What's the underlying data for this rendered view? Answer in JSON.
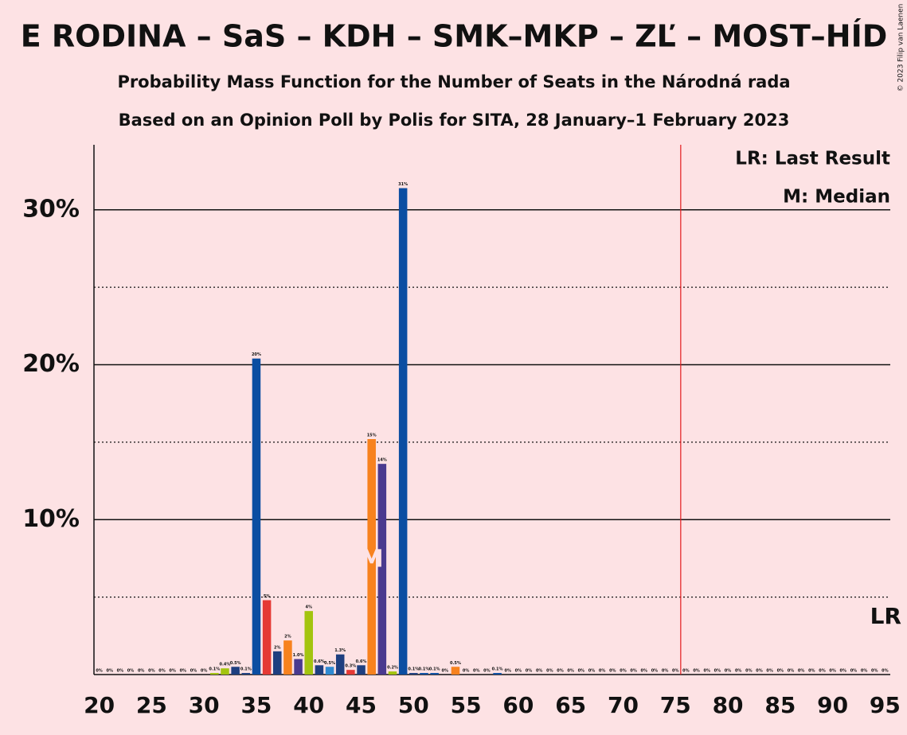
{
  "chart_data": {
    "type": "bar",
    "title": "E RODINA – SaS – KDH – SMK–MKP – ZĽ – MOST–HÍD",
    "subtitle": "Probability Mass Function for the Number of Seats in the Národná rada",
    "subtitle2": "Based on an Opinion Poll by Polis for SITA, 28 January–1 February 2023",
    "copyright": "© 2023 Filip van Laenen",
    "legend": [
      "LR: Last Result",
      "M: Median"
    ],
    "last_result_label": "LR",
    "median_label": "M",
    "median": 46,
    "last_result_line": 75.5,
    "x": [
      20,
      21,
      22,
      23,
      24,
      25,
      26,
      27,
      28,
      29,
      30,
      31,
      32,
      33,
      34,
      35,
      36,
      37,
      38,
      39,
      40,
      41,
      42,
      43,
      44,
      45,
      46,
      47,
      48,
      49,
      50,
      51,
      52,
      53,
      54,
      55,
      56,
      57,
      58,
      59,
      60,
      61,
      62,
      63,
      64,
      65,
      66,
      67,
      68,
      69,
      70,
      71,
      72,
      73,
      74,
      75,
      76,
      77,
      78,
      79,
      80,
      81,
      82,
      83,
      84,
      85,
      86,
      87,
      88,
      89,
      90,
      91,
      92,
      93,
      94,
      95
    ],
    "values": [
      0,
      0,
      0,
      0,
      0,
      0,
      0,
      0,
      0,
      0,
      0,
      0.1,
      0.4,
      0.5,
      0.1,
      20.4,
      4.8,
      1.5,
      2.2,
      1.0,
      4.1,
      0.6,
      0.5,
      1.3,
      0.3,
      0.6,
      15.2,
      13.6,
      0.2,
      31.4,
      0.1,
      0.1,
      0.1,
      0,
      0.5,
      0,
      0,
      0,
      0.1,
      0,
      0,
      0,
      0,
      0,
      0,
      0,
      0,
      0,
      0,
      0,
      0,
      0,
      0,
      0,
      0,
      0,
      0,
      0,
      0,
      0,
      0,
      0,
      0,
      0,
      0,
      0,
      0,
      0,
      0,
      0,
      0,
      0,
      0,
      0,
      0,
      0
    ],
    "value_labels": [
      "0%",
      "0%",
      "0%",
      "0%",
      "0%",
      "0%",
      "0%",
      "0%",
      "0%",
      "0%",
      "0%",
      "0.1%",
      "0.4%",
      "0.5%",
      "0.1%",
      "20%",
      "5%",
      "2%",
      "2%",
      "1.0%",
      "4%",
      "0.6%",
      "0.5%",
      "1.3%",
      "0.3%",
      "0.6%",
      "15%",
      "14%",
      "0.2%",
      "31%",
      "0.1%",
      "0.1%",
      "0.1%",
      "0%",
      "0.5%",
      "0%",
      "0%",
      "0%",
      "0.1%",
      "0%",
      "0%",
      "0%",
      "0%",
      "0%",
      "0%",
      "0%",
      "0%",
      "0%",
      "0%",
      "0%",
      "0%",
      "0%",
      "0%",
      "0%",
      "0%",
      "0%",
      "0%",
      "0%",
      "0%",
      "0%",
      "0%",
      "0%",
      "0%",
      "0%",
      "0%",
      "0%",
      "0%",
      "0%",
      "0%",
      "0%",
      "0%",
      "0%",
      "0%",
      "0%",
      "0%",
      "0%"
    ],
    "colors": [
      "#0b4ea2",
      "#0b4ea2",
      "#0b4ea2",
      "#0b4ea2",
      "#0b4ea2",
      "#0b4ea2",
      "#0b4ea2",
      "#0b4ea2",
      "#0b4ea2",
      "#0b4ea2",
      "#0b4ea2",
      "#a3c40f",
      "#a3c40f",
      "#1e3f80",
      "#1e3f80",
      "#0b4ea2",
      "#e53935",
      "#1e3f80",
      "#f7821e",
      "#4a3a8f",
      "#a3c40f",
      "#1e3f80",
      "#2f8ad1",
      "#1e3f80",
      "#e53935",
      "#1e3f80",
      "#f7821e",
      "#4a3a8f",
      "#a3c40f",
      "#0b4ea2",
      "#1e3f80",
      "#0b4ea2",
      "#0b4ea2",
      "#0b4ea2",
      "#f7821e",
      "#0b4ea2",
      "#0b4ea2",
      "#0b4ea2",
      "#0b4ea2",
      "#0b4ea2",
      "#0b4ea2",
      "#0b4ea2",
      "#0b4ea2",
      "#0b4ea2",
      "#0b4ea2",
      "#0b4ea2",
      "#0b4ea2",
      "#0b4ea2",
      "#0b4ea2",
      "#0b4ea2",
      "#0b4ea2",
      "#0b4ea2",
      "#0b4ea2",
      "#0b4ea2",
      "#0b4ea2",
      "#0b4ea2",
      "#0b4ea2",
      "#0b4ea2",
      "#0b4ea2",
      "#0b4ea2",
      "#0b4ea2",
      "#0b4ea2",
      "#0b4ea2",
      "#0b4ea2",
      "#0b4ea2",
      "#0b4ea2",
      "#0b4ea2",
      "#0b4ea2",
      "#0b4ea2",
      "#0b4ea2",
      "#0b4ea2",
      "#0b4ea2",
      "#0b4ea2",
      "#0b4ea2",
      "#0b4ea2",
      "#0b4ea2"
    ],
    "xlim": [
      19.5,
      95.5
    ],
    "xticks": [
      20,
      25,
      30,
      35,
      40,
      45,
      50,
      55,
      60,
      65,
      70,
      75,
      80,
      85,
      90,
      95
    ],
    "ylim": [
      0,
      34.2
    ],
    "yticks": [
      {
        "value": 10,
        "label": "10%"
      },
      {
        "value": 20,
        "label": "20%"
      },
      {
        "value": 30,
        "label": "30%"
      }
    ],
    "minor_yticks": [
      5,
      15,
      25
    ]
  }
}
